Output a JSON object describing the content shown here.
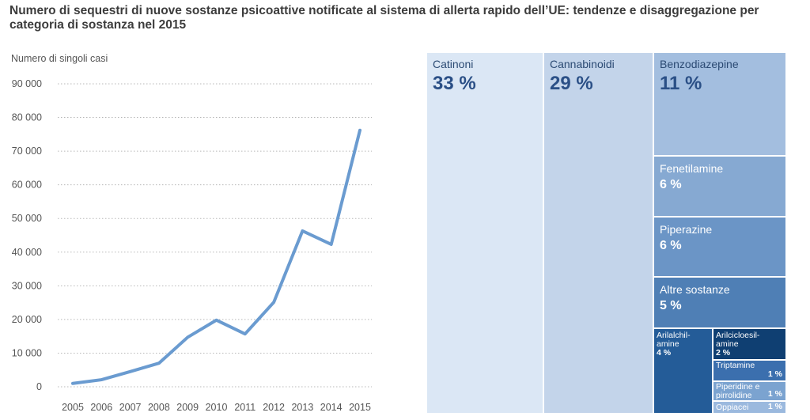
{
  "title": "Numero di sequestri di nuove sostanze psicoattive notificate al sistema di allerta rapido dell’UE: tendenze e disaggregazione per categoria di sostanza nel 2015",
  "chart_data": [
    {
      "type": "line",
      "title": "Numero di singoli casi",
      "ylabel": "Numero di singoli casi",
      "xlabel": "",
      "x": [
        "2005",
        "2006",
        "2007",
        "2008",
        "2009",
        "2010",
        "2011",
        "2012",
        "2013",
        "2014",
        "2015"
      ],
      "values": [
        1000,
        2100,
        4500,
        7000,
        14700,
        19800,
        15700,
        25100,
        46300,
        42300,
        76200
      ],
      "ylim": [
        0,
        90000
      ],
      "yticks": [
        0,
        10000,
        20000,
        30000,
        40000,
        50000,
        60000,
        70000,
        80000,
        90000
      ],
      "ytick_labels": [
        "0",
        "10 000",
        "20 000",
        "30 000",
        "40 000",
        "50 000",
        "60 000",
        "70 000",
        "80 000",
        "90 000"
      ],
      "grid": "horizontal-dotted",
      "color": "#6a9bd0"
    },
    {
      "type": "treemap",
      "categories": [
        {
          "name": "Catinoni",
          "pct": "33 %",
          "value": 33,
          "color": "#dbe7f5"
        },
        {
          "name": "Cannabinoidi",
          "pct": "29 %",
          "value": 29,
          "color": "#c3d4ea"
        },
        {
          "name": "Benzodiazepine",
          "pct": "11 %",
          "value": 11,
          "color": "#a3bedf"
        },
        {
          "name": "Fenetilamine",
          "pct": "6 %",
          "value": 6,
          "color": "#86a9d2"
        },
        {
          "name": "Piperazine",
          "pct": "6 %",
          "value": 6,
          "color": "#6b95c6"
        },
        {
          "name": "Altre sostanze",
          "pct": "5 %",
          "value": 5,
          "color": "#4f7fb5"
        },
        {
          "name": "Arilalchil-\namine",
          "pct": "4 %",
          "value": 4,
          "color": "#245c98"
        },
        {
          "name": "Arilcicloesil-\namine",
          "pct": "2 %",
          "value": 2,
          "color": "#0f3f72"
        },
        {
          "name": "Triptamine",
          "pct": "1 %",
          "value": 1,
          "color": "#3b6fae"
        },
        {
          "name": "Piperidine e\npirrolidine",
          "pct": "1 %",
          "value": 1,
          "color": "#7ba3d0"
        },
        {
          "name": "Oppiacei",
          "pct": "1 %",
          "value": 1,
          "color": "#9bb9de"
        }
      ]
    }
  ]
}
